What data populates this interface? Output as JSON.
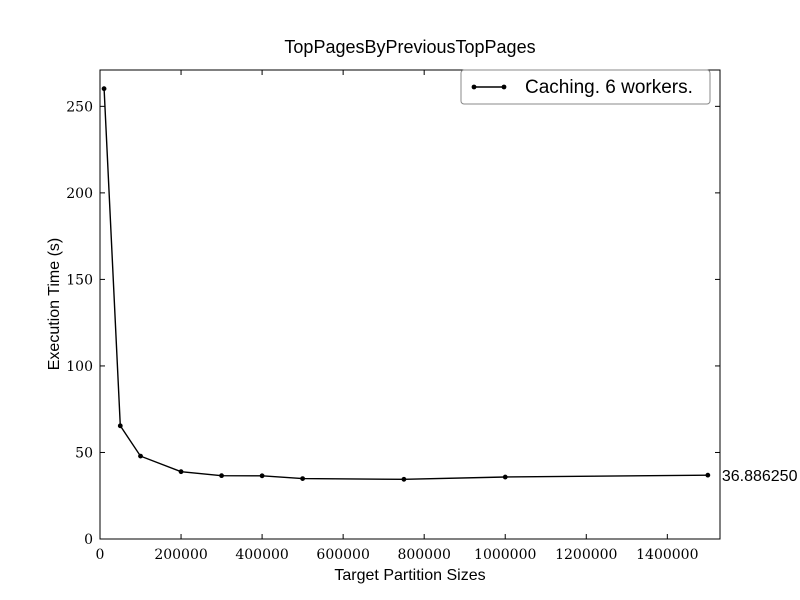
{
  "chart_data": {
    "type": "line",
    "title": "TopPagesByPreviousTopPages",
    "xlabel": "Target Partition Sizes",
    "ylabel": "Execution Time (s)",
    "xlim": [
      0,
      1530000
    ],
    "ylim": [
      0,
      271
    ],
    "x_ticks": [
      0,
      200000,
      400000,
      600000,
      800000,
      1000000,
      1200000,
      1400000
    ],
    "x_tick_labels": [
      "0",
      "200000",
      "400000",
      "600000",
      "800000",
      "1000000",
      "1200000",
      "1400000"
    ],
    "y_ticks": [
      0,
      50,
      100,
      150,
      200,
      250
    ],
    "y_tick_labels": [
      "0",
      "50",
      "100",
      "150",
      "200",
      "250"
    ],
    "grid": false,
    "legend_position": "top-right",
    "series": [
      {
        "name": "Caching. 6 workers.",
        "color": "#000000",
        "x": [
          10000,
          50000,
          100000,
          200000,
          300000,
          400000,
          500000,
          750000,
          1000000,
          1500000
        ],
        "y": [
          260.2,
          65.4,
          47.9,
          38.9,
          36.6,
          36.5,
          34.9,
          34.5,
          35.8,
          36.89
        ]
      }
    ],
    "annotations": [
      {
        "text": "36.886250",
        "x": 1500000,
        "y": 36.89
      }
    ]
  }
}
